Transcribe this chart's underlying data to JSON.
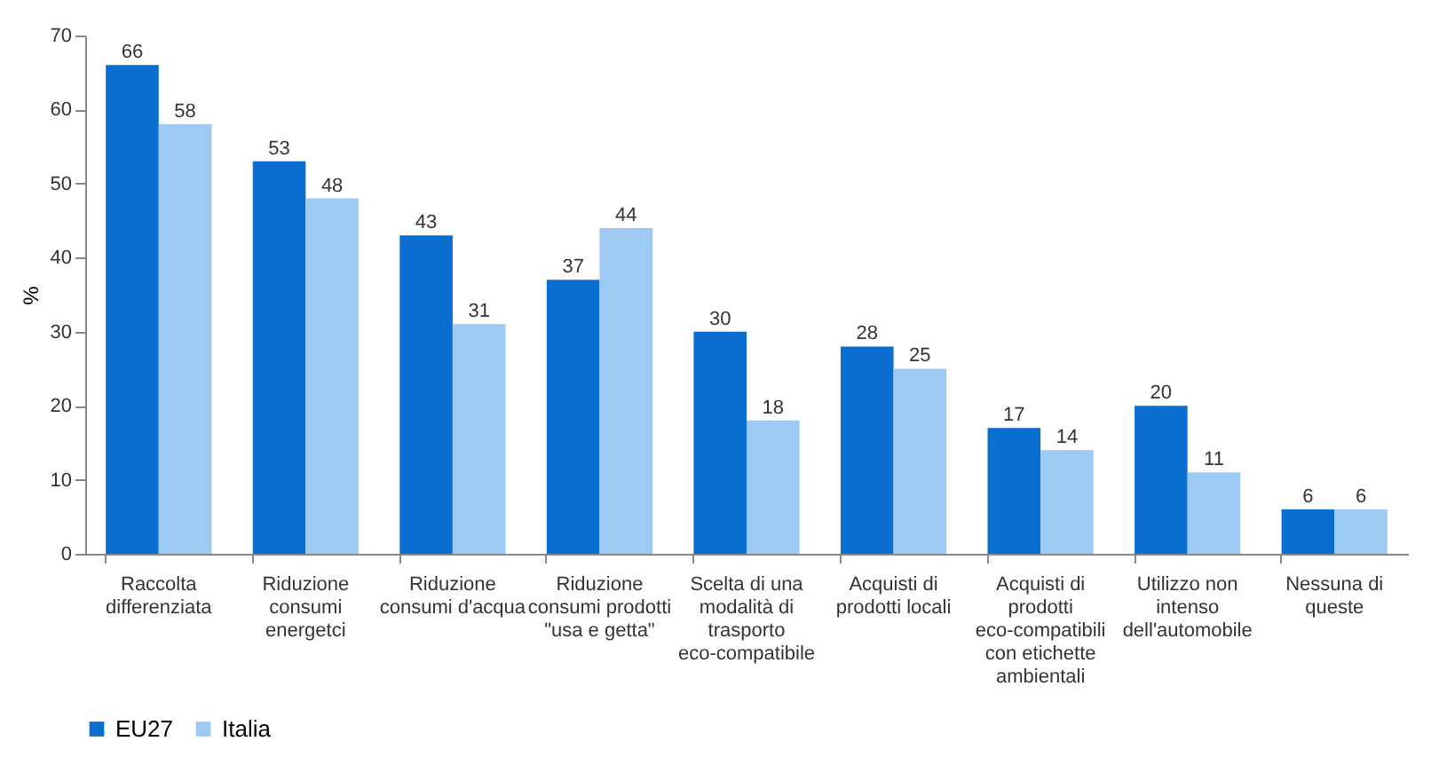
{
  "chart_data": {
    "type": "bar",
    "ylabel": "%",
    "categories": [
      "Raccolta differenziata",
      "Riduzione consumi energetci",
      "Riduzione consumi d'acqua",
      "Riduzione consumi prodotti \"usa e getta\"",
      "Scelta di una modalità di trasporto eco-compatibile",
      "Acquisti di prodotti locali",
      "Acquisti di prodotti eco-compatibili con etichette ambientali",
      "Utilizzo non intenso dell'automobile",
      "Nessuna di queste"
    ],
    "series": [
      {
        "name": "EU27",
        "color": "#0a6ed1",
        "values": [
          66,
          53,
          43,
          37,
          30,
          28,
          17,
          20,
          6
        ]
      },
      {
        "name": "Italia",
        "color": "#9dc9f2",
        "values": [
          58,
          48,
          31,
          44,
          18,
          25,
          14,
          11,
          6
        ]
      }
    ],
    "ylim": [
      0,
      70
    ],
    "yticks": [
      0,
      10,
      20,
      30,
      40,
      50,
      60,
      70
    ],
    "grid": false,
    "legend": "bottom",
    "data_labels": true
  }
}
